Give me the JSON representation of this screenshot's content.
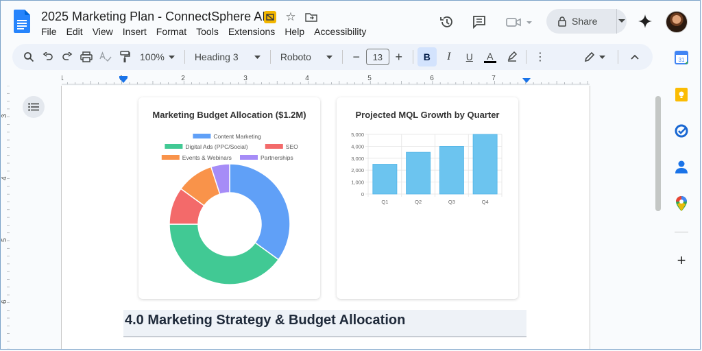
{
  "app": {
    "title": "2025 Marketing Plan - ConnectSphere AI",
    "menu": [
      "File",
      "Edit",
      "View",
      "Insert",
      "Format",
      "Tools",
      "Extensions",
      "Help",
      "Accessibility"
    ],
    "share_label": "Share"
  },
  "toolbar": {
    "zoom": "100%",
    "style": "Heading 3",
    "font": "Roboto",
    "font_size": "13",
    "bold_label": "B",
    "italic_label": "I",
    "underline_label": "U",
    "text_color_label": "A"
  },
  "ruler": {
    "top_numbers": [
      "1",
      "1",
      "2",
      "3",
      "4",
      "5",
      "6",
      "7"
    ],
    "left_numbers": [
      "3",
      "4",
      "5",
      "6"
    ]
  },
  "document": {
    "heading": "4.0 Marketing Strategy & Budget Allocation"
  },
  "colors": {
    "accent": "#1a73e8",
    "toolbar_bg": "#edf2fa"
  },
  "chart_data": [
    {
      "type": "pie",
      "title": "Marketing Budget Allocation ($1.2M)",
      "donut": true,
      "legend_position": "top",
      "series": [
        {
          "name": "Content Marketing",
          "value": 35,
          "color": "#60a0f7"
        },
        {
          "name": "Digital Ads (PPC/Social)",
          "value": 40,
          "color": "#41c994"
        },
        {
          "name": "SEO",
          "value": 10,
          "color": "#f36a6a"
        },
        {
          "name": "Events & Webinars",
          "value": 10,
          "color": "#f9934a"
        },
        {
          "name": "Partnerships",
          "value": 5,
          "color": "#a68cf7"
        }
      ]
    },
    {
      "type": "bar",
      "title": "Projected MQL Growth by Quarter",
      "categories": [
        "Q1",
        "Q2",
        "Q3",
        "Q4"
      ],
      "values": [
        2500,
        3500,
        4000,
        5000
      ],
      "ylim": [
        0,
        5000
      ],
      "yticks": [
        "5,000",
        "4,000",
        "3,000",
        "2,000",
        "1,000",
        "0"
      ],
      "bar_color": "#6cc4ef",
      "grid": true
    }
  ]
}
